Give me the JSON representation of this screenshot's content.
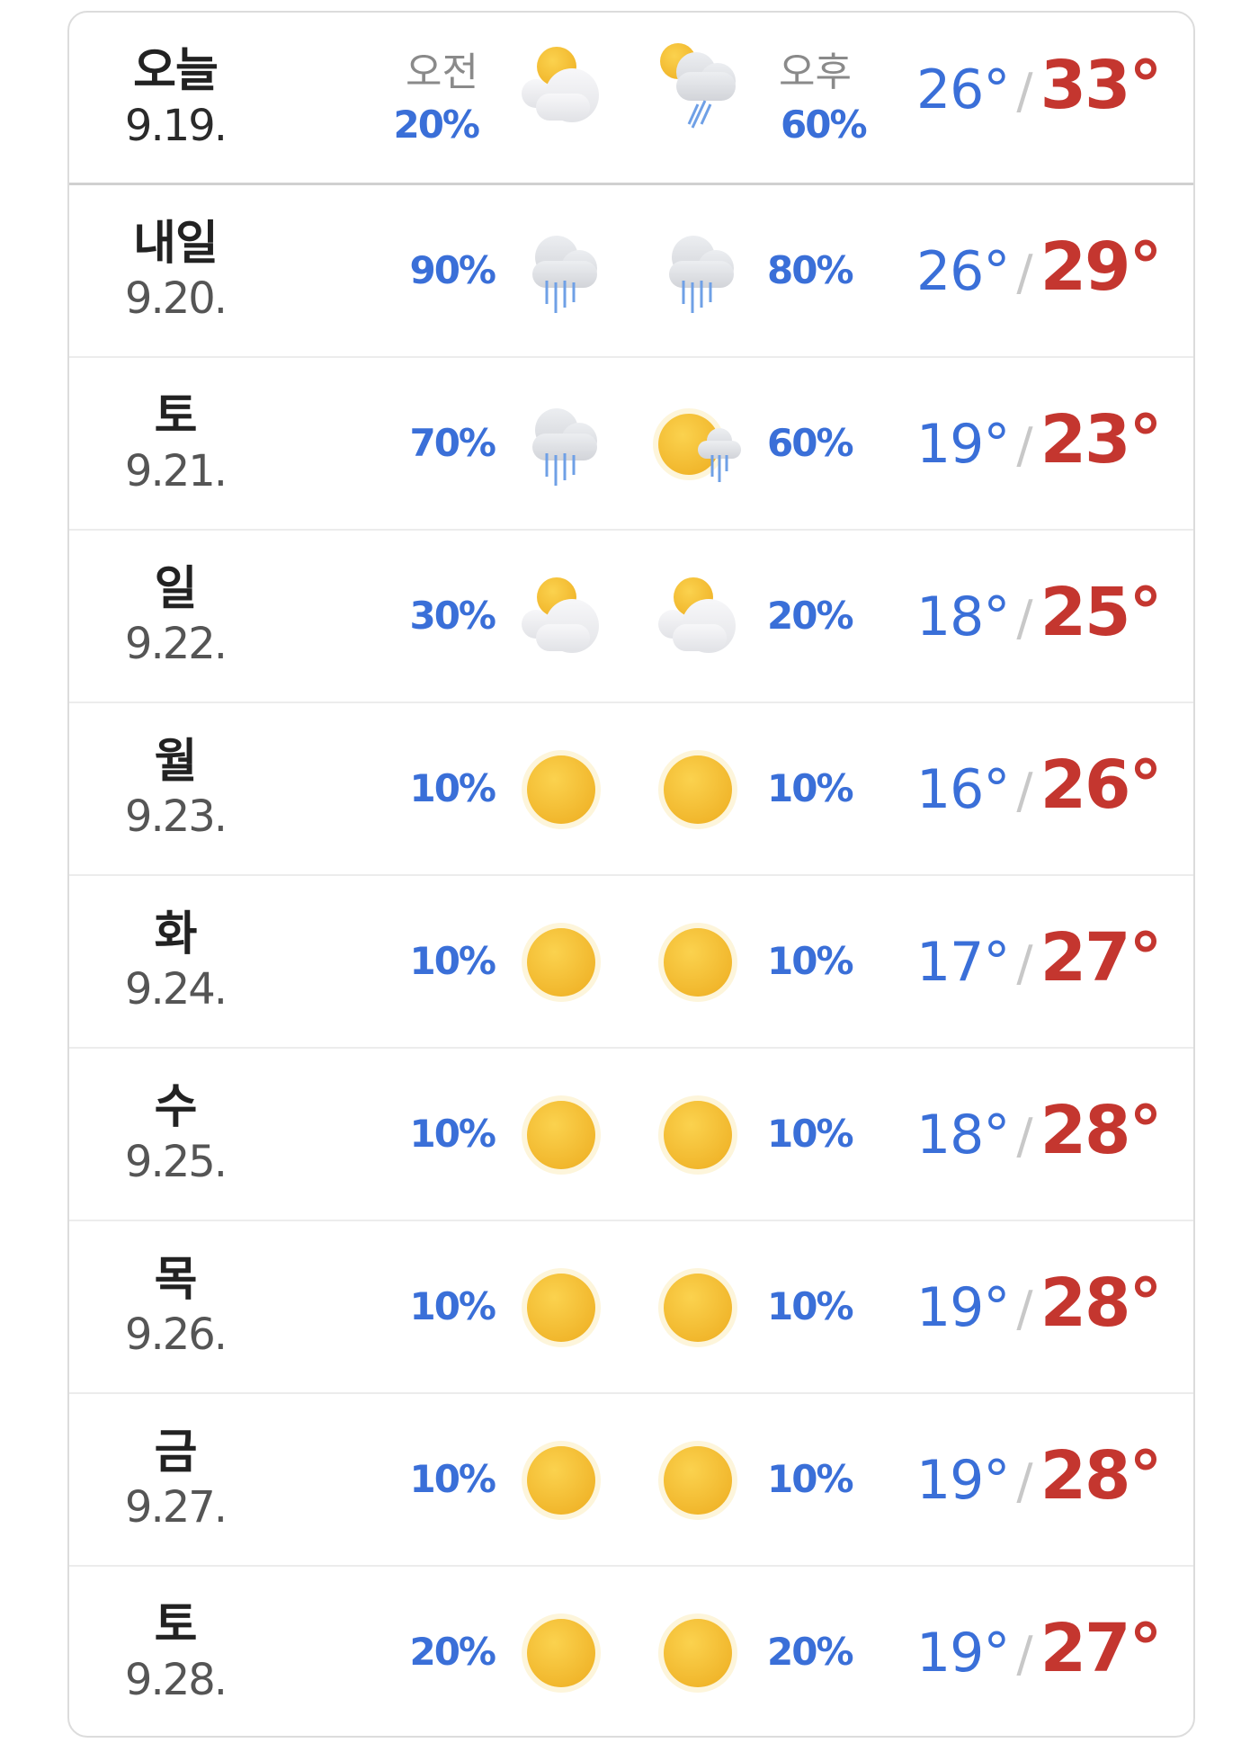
{
  "header": {
    "am_label": "오전",
    "pm_label": "오후"
  },
  "colors": {
    "low": "#3a6fd8",
    "high": "#c4362f",
    "precip": "#3a6fd8"
  },
  "days": [
    {
      "name": "오늘",
      "date": "9.19.",
      "am_precip": "20%",
      "am_icon": "partly-cloudy",
      "pm_icon": "cloud-sun-rain",
      "pm_precip": "60%",
      "low": "26°",
      "high": "33°"
    },
    {
      "name": "내일",
      "date": "9.20.",
      "am_precip": "90%",
      "am_icon": "rain",
      "pm_icon": "rain",
      "pm_precip": "80%",
      "low": "26°",
      "high": "29°"
    },
    {
      "name": "토",
      "date": "9.21.",
      "am_precip": "70%",
      "am_icon": "rain",
      "pm_icon": "sun-shower",
      "pm_precip": "60%",
      "low": "19°",
      "high": "23°"
    },
    {
      "name": "일",
      "date": "9.22.",
      "am_precip": "30%",
      "am_icon": "partly-cloudy",
      "pm_icon": "partly-cloudy",
      "pm_precip": "20%",
      "low": "18°",
      "high": "25°"
    },
    {
      "name": "월",
      "date": "9.23.",
      "am_precip": "10%",
      "am_icon": "sunny",
      "pm_icon": "sunny",
      "pm_precip": "10%",
      "low": "16°",
      "high": "26°"
    },
    {
      "name": "화",
      "date": "9.24.",
      "am_precip": "10%",
      "am_icon": "sunny",
      "pm_icon": "sunny",
      "pm_precip": "10%",
      "low": "17°",
      "high": "27°"
    },
    {
      "name": "수",
      "date": "9.25.",
      "am_precip": "10%",
      "am_icon": "sunny",
      "pm_icon": "sunny",
      "pm_precip": "10%",
      "low": "18°",
      "high": "28°"
    },
    {
      "name": "목",
      "date": "9.26.",
      "am_precip": "10%",
      "am_icon": "sunny",
      "pm_icon": "sunny",
      "pm_precip": "10%",
      "low": "19°",
      "high": "28°"
    },
    {
      "name": "금",
      "date": "9.27.",
      "am_precip": "10%",
      "am_icon": "sunny",
      "pm_icon": "sunny",
      "pm_precip": "10%",
      "low": "19°",
      "high": "28°"
    },
    {
      "name": "토",
      "date": "9.28.",
      "am_precip": "20%",
      "am_icon": "sunny",
      "pm_icon": "sunny",
      "pm_precip": "20%",
      "low": "19°",
      "high": "27°"
    }
  ]
}
